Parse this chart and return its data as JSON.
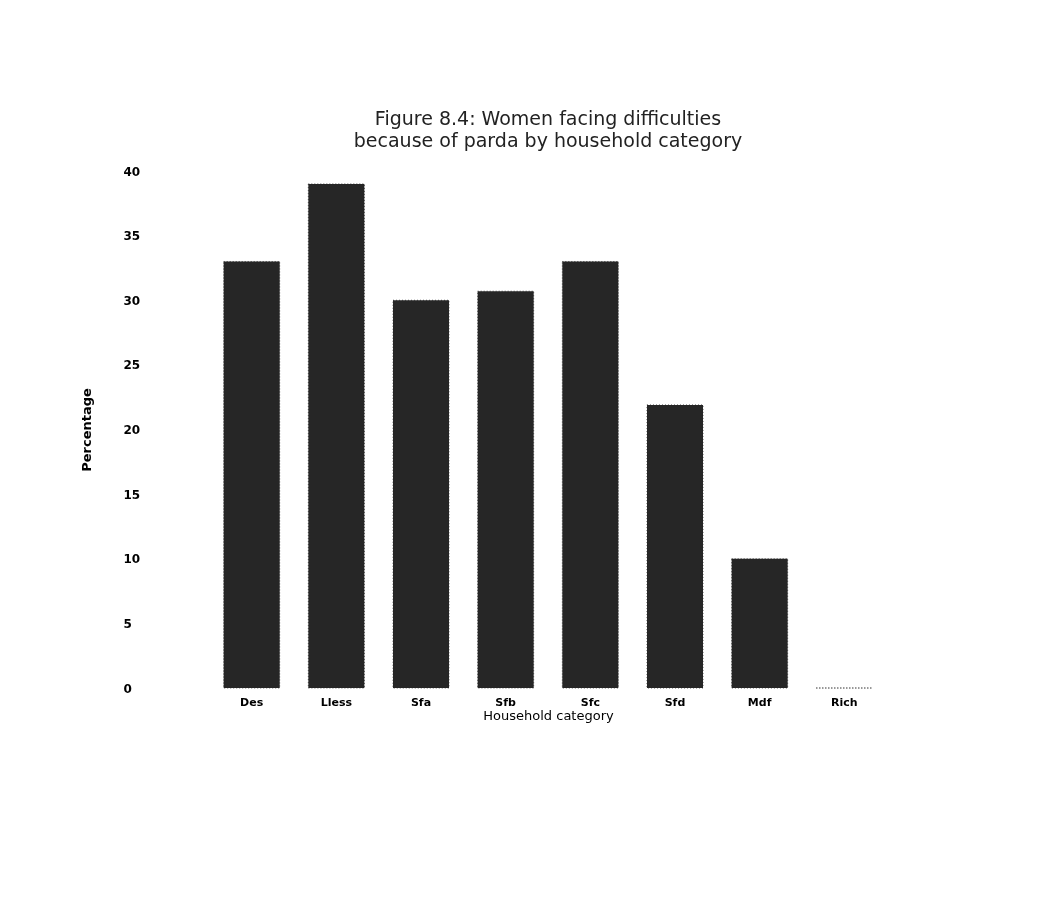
{
  "chart_data": {
    "type": "bar",
    "title": [
      "Figure 8.4: Women facing difficulties",
      "because of parda by household category"
    ],
    "xlabel": "Household category",
    "ylabel": "Percentage",
    "categories": [
      "Des",
      "Lless",
      "Sfa",
      "Sfb",
      "Sfc",
      "Sfd",
      "Mdf",
      "Rich"
    ],
    "values": [
      33,
      39,
      30,
      30.7,
      33,
      21.9,
      10,
      0
    ],
    "color": "#262626",
    "ylim": [
      0,
      40
    ],
    "yticks": [
      0,
      5,
      10,
      15,
      20,
      25,
      30,
      35,
      40
    ],
    "grid": false
  }
}
